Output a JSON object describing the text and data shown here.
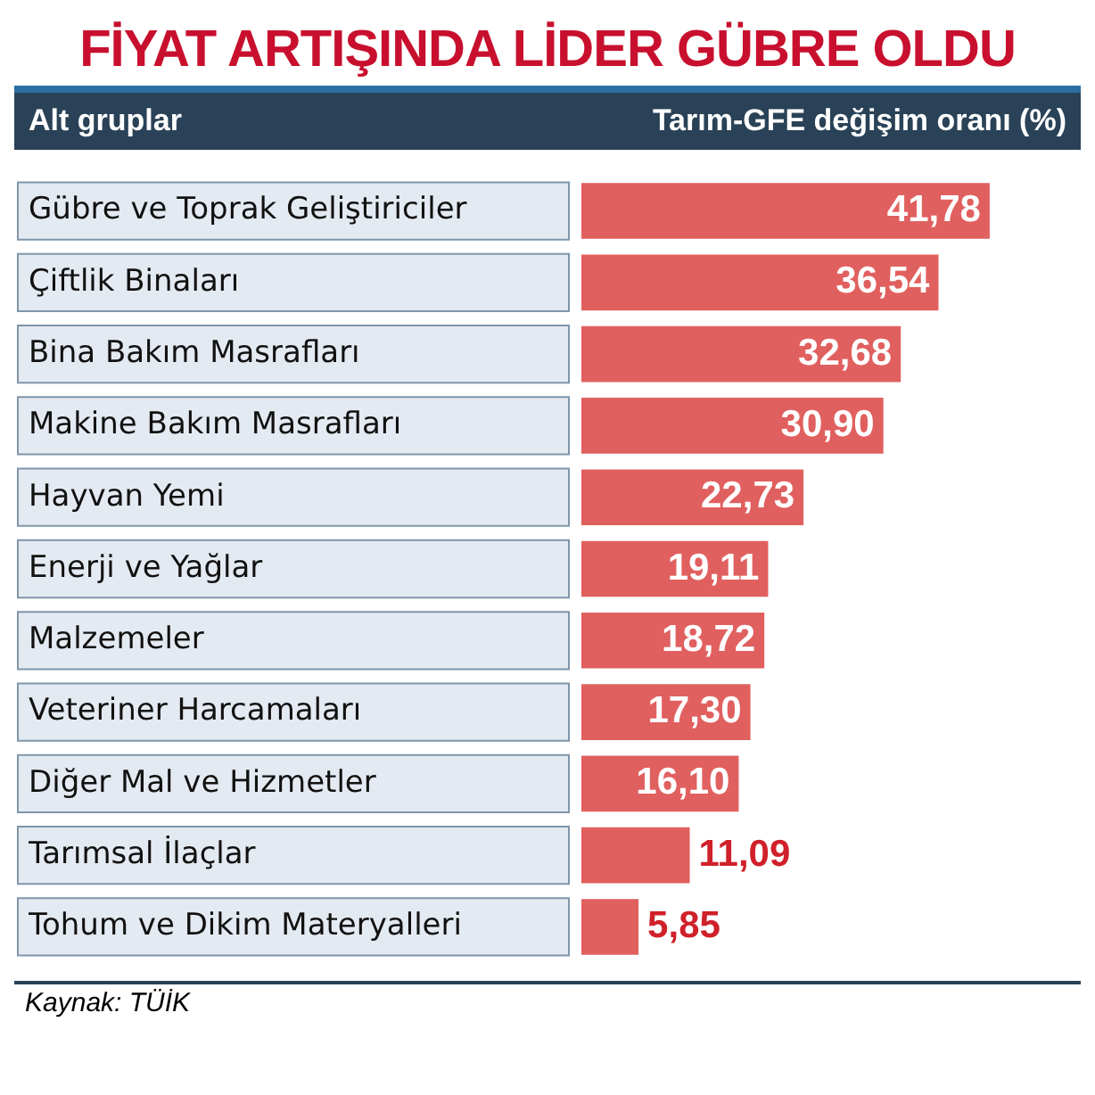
{
  "chart_data": {
    "type": "bar",
    "orientation": "horizontal",
    "title": "FİYAT ARTIŞINDA LİDER GÜBRE OLDU",
    "ylabel": "Alt gruplar",
    "xlabel": "Tarım-GFE değişim oranı (%)",
    "categories": [
      "Gübre ve Toprak Geliştiriciler",
      "Çiftlik Binaları",
      "Bina Bakım Masrafları",
      "Makine Bakım Masrafları",
      "Hayvan Yemi",
      "Enerji ve Yağlar",
      "Malzemeler",
      "Veteriner Harcamaları",
      "Diğer Mal ve Hizmetler",
      "Tarımsal İlaçlar",
      "Tohum ve Dikim Materyalleri"
    ],
    "values": [
      41.78,
      36.54,
      32.68,
      30.9,
      22.73,
      19.11,
      18.72,
      17.3,
      16.1,
      11.09,
      5.85
    ],
    "value_labels": [
      "41,78",
      "36,54",
      "32,68",
      "30,90",
      "22,73",
      "19,11",
      "18,72",
      "17,30",
      "16,10",
      "11,09",
      "5,85"
    ],
    "color": "#e0605f",
    "grid": false,
    "legend": false,
    "tick_labels": "y",
    "annotations": [
      "Kaynak: TÜİK"
    ]
  }
}
